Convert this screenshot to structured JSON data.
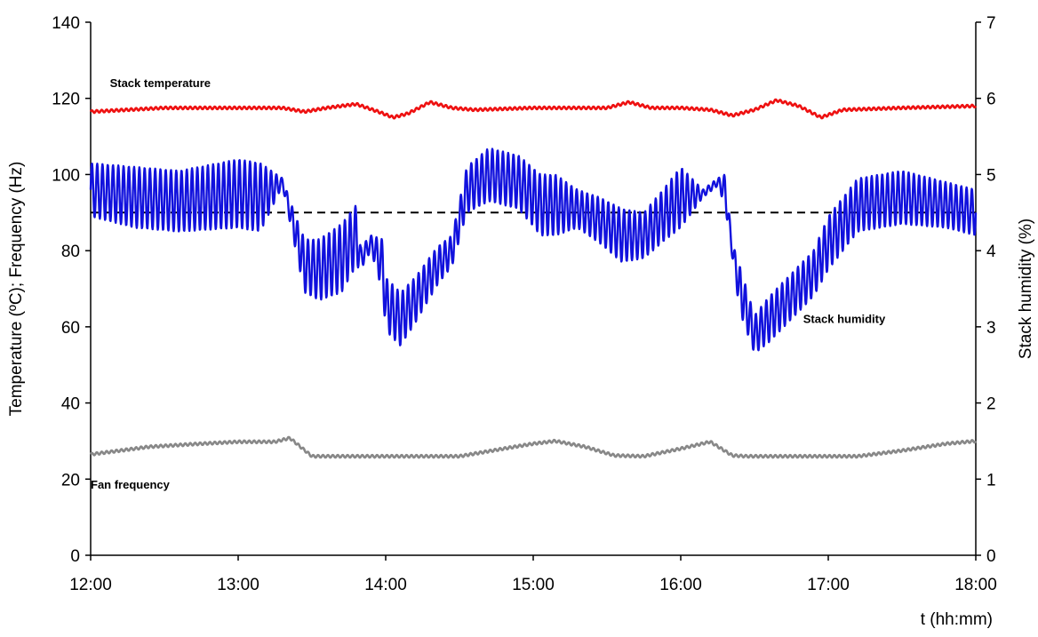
{
  "chart_data": {
    "type": "line",
    "title": "",
    "xlabel": "t (hh:mm)",
    "ylabel": "Temperature (ºC); Frequency (Hz)",
    "ylabel_right": "Stack humidity (%)",
    "xlim": [
      12,
      18
    ],
    "ylim": [
      0,
      140
    ],
    "ylim_right": [
      0,
      7
    ],
    "x_ticks": [
      {
        "value": 12,
        "label": "12:00"
      },
      {
        "value": 13,
        "label": "13:00"
      },
      {
        "value": 14,
        "label": "14:00"
      },
      {
        "value": 15,
        "label": "15:00"
      },
      {
        "value": 16,
        "label": "16:00"
      },
      {
        "value": 17,
        "label": "17:00"
      },
      {
        "value": 18,
        "label": "18:00"
      }
    ],
    "y_ticks": [
      "0",
      "20",
      "40",
      "60",
      "80",
      "100",
      "120",
      "140"
    ],
    "y_ticks_right": [
      "0",
      "1",
      "2",
      "3",
      "4",
      "5",
      "6",
      "7"
    ],
    "grid": false,
    "reference_line": {
      "axis": "right",
      "value": 4.5,
      "style": "dashed",
      "color": "#000000"
    },
    "series": [
      {
        "name": "Stack temperature",
        "axis": "left",
        "color": "#ee1111",
        "x": [
          12.0,
          12.5,
          13.0,
          13.3,
          13.45,
          13.6,
          13.8,
          13.95,
          14.05,
          14.15,
          14.3,
          14.45,
          14.6,
          15.0,
          15.3,
          15.5,
          15.65,
          15.8,
          16.0,
          16.2,
          16.35,
          16.5,
          16.65,
          16.8,
          16.95,
          17.1,
          17.5,
          18.0
        ],
        "values": [
          116.5,
          117.5,
          117.5,
          117.5,
          116.5,
          117.5,
          118.5,
          116.5,
          115,
          116,
          119,
          117.5,
          117,
          117.5,
          117.5,
          117.5,
          119,
          117.5,
          117.5,
          117,
          115.5,
          117,
          119.5,
          118,
          115,
          117,
          117.5,
          118
        ]
      },
      {
        "name": "Stack humidity",
        "axis": "right",
        "color": "#1111dd",
        "x": [
          12.0,
          12.3,
          12.6,
          13.0,
          13.15,
          13.3,
          13.38,
          13.45,
          13.55,
          13.7,
          13.8,
          13.83,
          13.9,
          13.98,
          14.0,
          14.1,
          14.2,
          14.35,
          14.45,
          14.55,
          14.7,
          14.9,
          15.05,
          15.15,
          15.3,
          15.45,
          15.6,
          15.75,
          15.9,
          16.0,
          16.15,
          16.25,
          16.3,
          16.35,
          16.4,
          16.5,
          16.6,
          16.75,
          16.9,
          17.0,
          17.2,
          17.5,
          17.8,
          18.0
        ],
        "center": [
          4.8,
          4.7,
          4.65,
          4.75,
          4.7,
          4.9,
          4.3,
          3.8,
          3.75,
          3.9,
          4.2,
          3.9,
          4.1,
          3.8,
          3.3,
          3.1,
          3.35,
          3.8,
          4.0,
          4.8,
          5.0,
          4.9,
          4.6,
          4.6,
          4.55,
          4.4,
          4.2,
          4.2,
          4.5,
          4.7,
          4.75,
          4.9,
          4.8,
          4.0,
          3.5,
          2.9,
          3.1,
          3.4,
          3.7,
          4.1,
          4.6,
          4.7,
          4.6,
          4.5
        ],
        "amplitude": [
          0.35,
          0.4,
          0.4,
          0.45,
          0.45,
          0.05,
          0.2,
          0.35,
          0.4,
          0.45,
          0.4,
          0.15,
          0.1,
          0.35,
          0.35,
          0.35,
          0.3,
          0.25,
          0.2,
          0.3,
          0.35,
          0.35,
          0.4,
          0.4,
          0.25,
          0.3,
          0.35,
          0.3,
          0.35,
          0.4,
          0.05,
          0.05,
          0.2,
          0.1,
          0.3,
          0.25,
          0.3,
          0.3,
          0.3,
          0.35,
          0.35,
          0.35,
          0.3,
          0.3
        ],
        "cycles_per_hour": 28
      },
      {
        "name": "Fan frequency",
        "axis": "left",
        "color": "#888888",
        "x": [
          12.0,
          12.4,
          12.7,
          13.0,
          13.25,
          13.35,
          13.5,
          14.0,
          14.5,
          14.8,
          15.0,
          15.15,
          15.35,
          15.55,
          15.75,
          16.0,
          16.2,
          16.35,
          16.45,
          17.0,
          17.2,
          17.5,
          17.8,
          18.0
        ],
        "values": [
          26.5,
          28.5,
          29.2,
          29.8,
          29.8,
          30.8,
          26,
          26,
          26,
          28,
          29.3,
          30,
          28.5,
          26.2,
          26,
          28,
          29.8,
          26.2,
          26,
          26,
          26,
          27.5,
          29.3,
          30
        ]
      }
    ],
    "annotations": [
      {
        "text": "Stack temperature",
        "x": 12.13,
        "y": 123
      },
      {
        "text": "Stack humidity",
        "x": 16.83,
        "y": 61
      },
      {
        "text": "Fan frequency",
        "x": 12.0,
        "y": 17.5
      }
    ]
  }
}
